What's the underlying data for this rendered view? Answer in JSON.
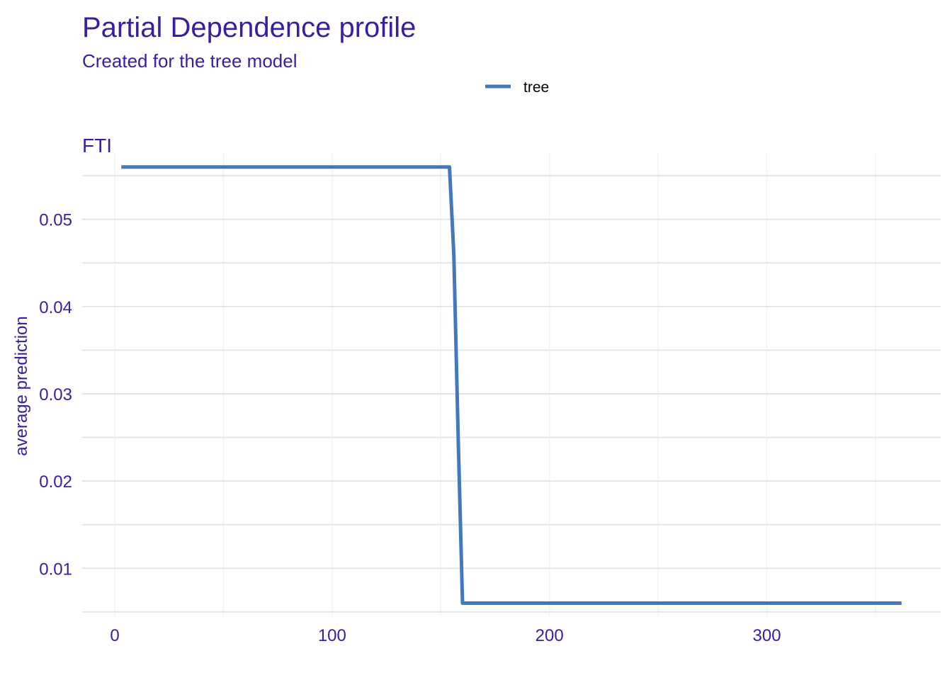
{
  "chart_data": {
    "type": "line",
    "title": "Partial Dependence profile",
    "subtitle": "Created for the tree model",
    "facet_label": "FTI",
    "xlabel": "",
    "ylabel": "average prediction",
    "xlim": [
      -15,
      380
    ],
    "ylim": [
      0.0045,
      0.0576
    ],
    "x_ticks": [
      0,
      100,
      200,
      300
    ],
    "y_ticks": [
      0.01,
      0.02,
      0.03,
      0.04,
      0.05
    ],
    "x_tick_labels": [
      "0",
      "100",
      "200",
      "300"
    ],
    "y_tick_labels": [
      "0.01",
      "0.02",
      "0.03",
      "0.04",
      "0.05"
    ],
    "grid": true,
    "legend_position": "top",
    "series": [
      {
        "name": "tree",
        "color": "#4378bf",
        "points": [
          {
            "x": 3,
            "y": 0.056
          },
          {
            "x": 154,
            "y": 0.056
          },
          {
            "x": 156,
            "y": 0.046
          },
          {
            "x": 158,
            "y": 0.025
          },
          {
            "x": 160,
            "y": 0.006
          },
          {
            "x": 362,
            "y": 0.006
          }
        ]
      }
    ]
  }
}
